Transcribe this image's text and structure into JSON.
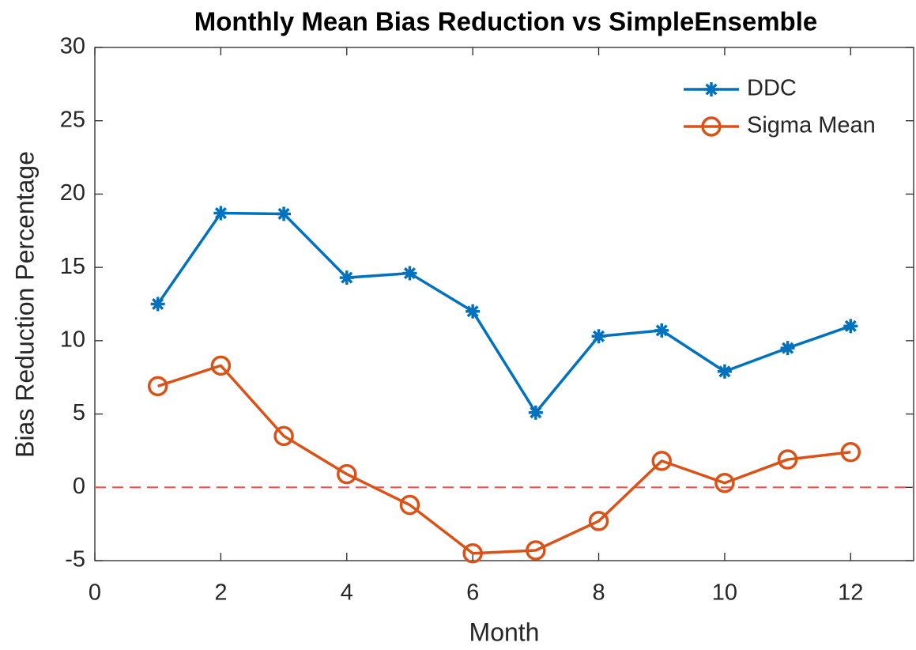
{
  "chart_data": {
    "type": "line",
    "title": "Monthly Mean Bias Reduction vs SimpleEnsemble",
    "x_label": "Month",
    "y_label": "Bias Reduction Percentage",
    "x": [
      1,
      2,
      3,
      4,
      5,
      6,
      7,
      8,
      9,
      10,
      11,
      12
    ],
    "series": [
      {
        "name": "DDC",
        "color": "#0072bd",
        "marker": "asterisk",
        "values": [
          12.5,
          18.7,
          18.65,
          14.3,
          14.6,
          12.0,
          5.1,
          10.3,
          10.7,
          7.9,
          9.5,
          11.0
        ]
      },
      {
        "name": "Sigma Mean",
        "color": "#d95319",
        "marker": "circle",
        "values": [
          6.9,
          8.3,
          3.5,
          0.9,
          -1.2,
          -4.5,
          -4.3,
          -2.3,
          1.8,
          0.3,
          1.9,
          2.4
        ]
      }
    ],
    "reference_line": {
      "value": 0,
      "color": "#ff4d4d"
    },
    "xlim": [
      0,
      13
    ],
    "xticks": [
      0,
      2,
      4,
      6,
      8,
      10,
      12
    ],
    "ylim": [
      -5,
      30
    ],
    "yticks": [
      -5,
      0,
      5,
      10,
      15,
      20,
      25,
      30
    ],
    "legend": "northeast",
    "grid": false
  }
}
